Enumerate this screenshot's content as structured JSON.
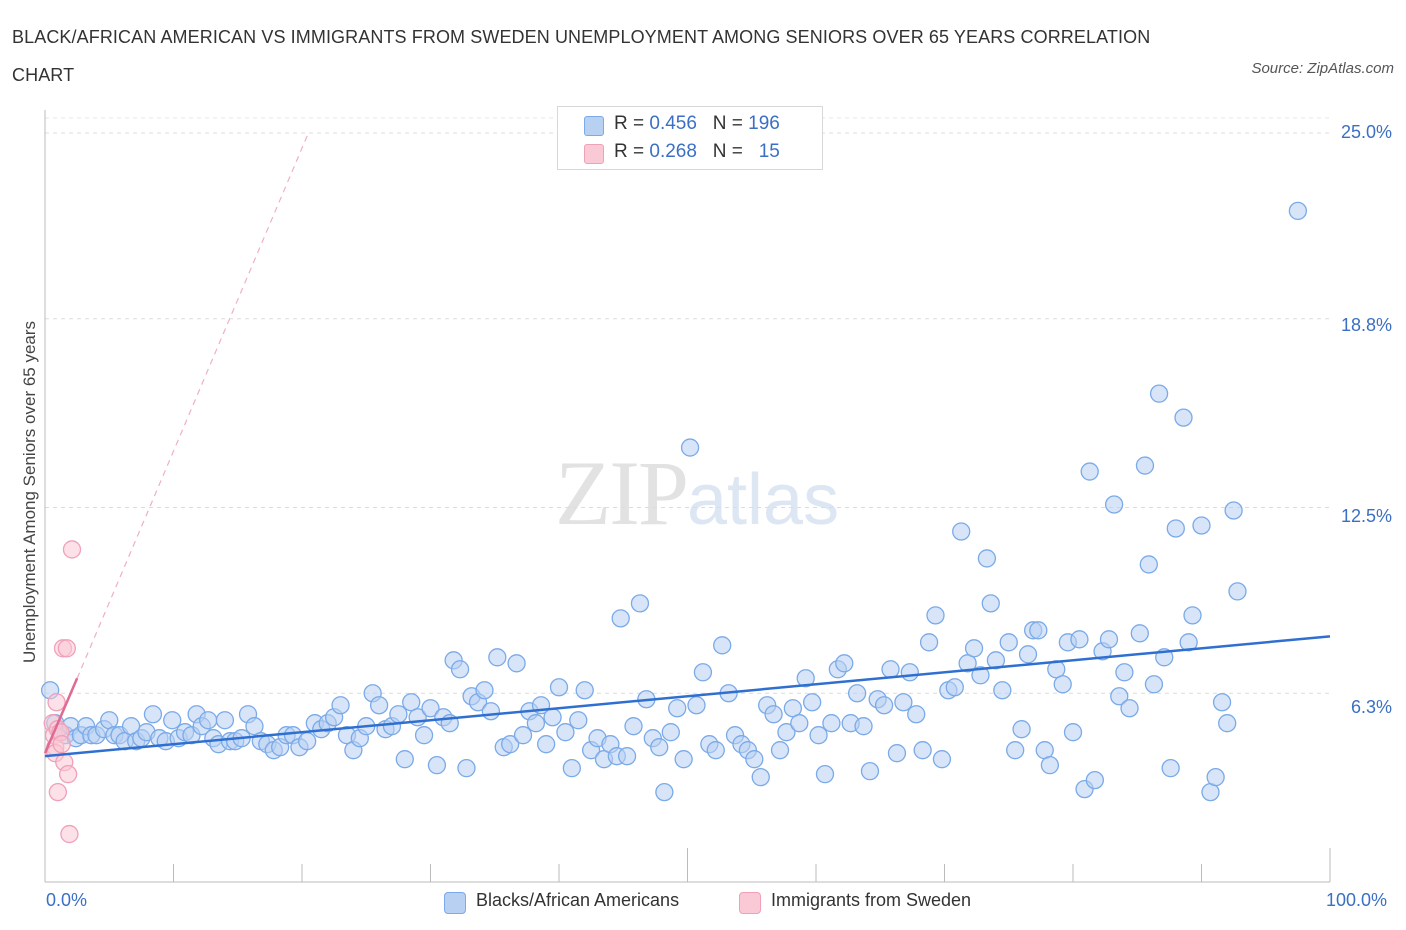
{
  "chart_data": {
    "type": "scatter",
    "title": "BLACK/AFRICAN AMERICAN VS IMMIGRANTS FROM SWEDEN UNEMPLOYMENT AMONG SENIORS OVER 65 YEARS CORRELATION CHART",
    "source": "Source: ZipAtlas.com",
    "xlabel": "",
    "ylabel": "Unemployment Among Seniors over 65 years",
    "xlim": [
      0,
      100
    ],
    "ylim": [
      0,
      25
    ],
    "x_tick_labels": [
      "0.0%",
      "100.0%"
    ],
    "y_ticks": [
      6.3,
      12.5,
      18.8,
      25.0
    ],
    "y_tick_labels": [
      "6.3%",
      "12.5%",
      "18.8%",
      "25.0%"
    ],
    "watermark": "ZIPatlas",
    "legend": [
      {
        "r_label": "R =",
        "r": "0.456",
        "n_label": "N =",
        "n": "196"
      },
      {
        "r_label": "R =",
        "r": "0.268",
        "n_label": "N =",
        "n": "15"
      }
    ],
    "series": [
      {
        "name": "Blacks/African Americans",
        "color": "#7aaae8",
        "fill": "#b8d0f2",
        "trend": {
          "x0": 0,
          "y0": 4.2,
          "x1": 100,
          "y1": 8.2
        },
        "points": [
          [
            0.4,
            6.4
          ],
          [
            0.8,
            5.3
          ],
          [
            1.2,
            5.0
          ],
          [
            1.6,
            4.9
          ],
          [
            2.0,
            5.2
          ],
          [
            2.4,
            4.8
          ],
          [
            2.8,
            4.9
          ],
          [
            3.2,
            5.2
          ],
          [
            3.6,
            4.9
          ],
          [
            4.0,
            4.9
          ],
          [
            4.6,
            5.1
          ],
          [
            5.0,
            5.4
          ],
          [
            5.4,
            4.9
          ],
          [
            5.8,
            4.9
          ],
          [
            6.2,
            4.7
          ],
          [
            6.7,
            5.2
          ],
          [
            7.1,
            4.7
          ],
          [
            7.5,
            4.8
          ],
          [
            7.9,
            5.0
          ],
          [
            8.4,
            5.6
          ],
          [
            8.9,
            4.8
          ],
          [
            9.4,
            4.7
          ],
          [
            9.9,
            5.4
          ],
          [
            10.4,
            4.8
          ],
          [
            10.9,
            5.0
          ],
          [
            11.4,
            4.9
          ],
          [
            11.8,
            5.6
          ],
          [
            12.2,
            5.2
          ],
          [
            12.7,
            5.4
          ],
          [
            13.1,
            4.8
          ],
          [
            13.5,
            4.6
          ],
          [
            14.0,
            5.4
          ],
          [
            14.4,
            4.7
          ],
          [
            14.8,
            4.7
          ],
          [
            15.3,
            4.8
          ],
          [
            15.8,
            5.6
          ],
          [
            16.3,
            5.2
          ],
          [
            16.8,
            4.7
          ],
          [
            17.3,
            4.6
          ],
          [
            17.8,
            4.4
          ],
          [
            18.3,
            4.5
          ],
          [
            18.8,
            4.9
          ],
          [
            19.3,
            4.9
          ],
          [
            19.8,
            4.5
          ],
          [
            20.4,
            4.7
          ],
          [
            21.0,
            5.3
          ],
          [
            21.5,
            5.1
          ],
          [
            22.0,
            5.3
          ],
          [
            22.5,
            5.5
          ],
          [
            23.0,
            5.9
          ],
          [
            23.5,
            4.9
          ],
          [
            24.0,
            4.4
          ],
          [
            24.5,
            4.8
          ],
          [
            25.0,
            5.2
          ],
          [
            25.5,
            6.3
          ],
          [
            26.0,
            5.9
          ],
          [
            26.5,
            5.1
          ],
          [
            27.0,
            5.2
          ],
          [
            27.5,
            5.6
          ],
          [
            28.0,
            4.1
          ],
          [
            28.5,
            6.0
          ],
          [
            29.0,
            5.5
          ],
          [
            29.5,
            4.9
          ],
          [
            30.0,
            5.8
          ],
          [
            30.5,
            3.9
          ],
          [
            31.0,
            5.5
          ],
          [
            31.5,
            5.3
          ],
          [
            31.8,
            7.4
          ],
          [
            32.3,
            7.1
          ],
          [
            32.8,
            3.8
          ],
          [
            33.2,
            6.2
          ],
          [
            33.7,
            6.0
          ],
          [
            34.2,
            6.4
          ],
          [
            34.7,
            5.7
          ],
          [
            35.2,
            7.5
          ],
          [
            35.7,
            4.5
          ],
          [
            36.2,
            4.6
          ],
          [
            36.7,
            7.3
          ],
          [
            37.2,
            4.9
          ],
          [
            37.7,
            5.7
          ],
          [
            38.2,
            5.3
          ],
          [
            38.6,
            5.9
          ],
          [
            39.0,
            4.6
          ],
          [
            39.5,
            5.5
          ],
          [
            40.0,
            6.5
          ],
          [
            40.5,
            5.0
          ],
          [
            41.0,
            3.8
          ],
          [
            41.5,
            5.4
          ],
          [
            42.0,
            6.4
          ],
          [
            42.5,
            4.4
          ],
          [
            43.0,
            4.8
          ],
          [
            43.5,
            4.1
          ],
          [
            44.0,
            4.6
          ],
          [
            44.5,
            4.2
          ],
          [
            44.8,
            8.8
          ],
          [
            45.3,
            4.2
          ],
          [
            45.8,
            5.2
          ],
          [
            46.3,
            9.3
          ],
          [
            46.8,
            6.1
          ],
          [
            47.3,
            4.8
          ],
          [
            47.8,
            4.5
          ],
          [
            48.2,
            3.0
          ],
          [
            48.7,
            5.0
          ],
          [
            49.2,
            5.8
          ],
          [
            49.7,
            4.1
          ],
          [
            50.2,
            14.5
          ],
          [
            50.7,
            5.9
          ],
          [
            51.2,
            7.0
          ],
          [
            51.7,
            4.6
          ],
          [
            52.2,
            4.4
          ],
          [
            52.7,
            7.9
          ],
          [
            53.2,
            6.3
          ],
          [
            53.7,
            4.9
          ],
          [
            54.2,
            4.6
          ],
          [
            54.7,
            4.4
          ],
          [
            55.2,
            4.1
          ],
          [
            55.7,
            3.5
          ],
          [
            56.2,
            5.9
          ],
          [
            56.7,
            5.6
          ],
          [
            57.2,
            4.4
          ],
          [
            57.7,
            5.0
          ],
          [
            58.2,
            5.8
          ],
          [
            58.7,
            5.3
          ],
          [
            59.2,
            6.8
          ],
          [
            59.7,
            6.0
          ],
          [
            60.2,
            4.9
          ],
          [
            60.7,
            3.6
          ],
          [
            61.2,
            5.3
          ],
          [
            61.7,
            7.1
          ],
          [
            62.2,
            7.3
          ],
          [
            62.7,
            5.3
          ],
          [
            63.2,
            6.3
          ],
          [
            63.7,
            5.2
          ],
          [
            64.2,
            3.7
          ],
          [
            64.8,
            6.1
          ],
          [
            65.3,
            5.9
          ],
          [
            65.8,
            7.1
          ],
          [
            66.3,
            4.3
          ],
          [
            66.8,
            6.0
          ],
          [
            67.3,
            7.0
          ],
          [
            67.8,
            5.6
          ],
          [
            68.3,
            4.4
          ],
          [
            68.8,
            8.0
          ],
          [
            69.3,
            8.9
          ],
          [
            69.8,
            4.1
          ],
          [
            70.3,
            6.4
          ],
          [
            70.8,
            6.5
          ],
          [
            71.3,
            11.7
          ],
          [
            71.8,
            7.3
          ],
          [
            72.3,
            7.8
          ],
          [
            72.8,
            6.9
          ],
          [
            73.3,
            10.8
          ],
          [
            73.6,
            9.3
          ],
          [
            74.0,
            7.4
          ],
          [
            74.5,
            6.4
          ],
          [
            75.0,
            8.0
          ],
          [
            75.5,
            4.4
          ],
          [
            76.0,
            5.1
          ],
          [
            76.5,
            7.6
          ],
          [
            76.9,
            8.4
          ],
          [
            77.3,
            8.4
          ],
          [
            77.8,
            4.4
          ],
          [
            78.2,
            3.9
          ],
          [
            78.7,
            7.1
          ],
          [
            79.2,
            6.6
          ],
          [
            79.6,
            8.0
          ],
          [
            80.0,
            5.0
          ],
          [
            80.5,
            8.1
          ],
          [
            80.9,
            3.1
          ],
          [
            81.3,
            13.7
          ],
          [
            81.7,
            3.4
          ],
          [
            82.3,
            7.7
          ],
          [
            82.8,
            8.1
          ],
          [
            83.2,
            12.6
          ],
          [
            83.6,
            6.2
          ],
          [
            84.0,
            7.0
          ],
          [
            84.4,
            5.8
          ],
          [
            85.2,
            8.3
          ],
          [
            85.6,
            13.9
          ],
          [
            85.9,
            10.6
          ],
          [
            86.3,
            6.6
          ],
          [
            86.7,
            16.3
          ],
          [
            87.1,
            7.5
          ],
          [
            87.6,
            3.8
          ],
          [
            88.0,
            11.8
          ],
          [
            88.6,
            15.5
          ],
          [
            89.0,
            8.0
          ],
          [
            89.3,
            8.9
          ],
          [
            90.0,
            11.9
          ],
          [
            90.7,
            3.0
          ],
          [
            91.1,
            3.5
          ],
          [
            91.6,
            6.0
          ],
          [
            92.0,
            5.3
          ],
          [
            92.5,
            12.4
          ],
          [
            92.8,
            9.7
          ],
          [
            97.5,
            22.4
          ]
        ]
      },
      {
        "name": "Immigrants from Sweden",
        "color": "#f0a0b8",
        "fill": "#f9c9d6",
        "trend": {
          "x0": 0,
          "y0": 4.3,
          "x1": 2.5,
          "y1": 6.8
        },
        "trend_ext": {
          "x0": 2.5,
          "y0": 6.8,
          "x1": 20.5,
          "y1": 25.0
        },
        "points": [
          [
            0.6,
            5.3
          ],
          [
            0.7,
            4.9
          ],
          [
            0.8,
            4.5
          ],
          [
            0.8,
            4.3
          ],
          [
            0.9,
            6.0
          ],
          [
            1.0,
            5.1
          ],
          [
            1.0,
            3.0
          ],
          [
            1.2,
            5.0
          ],
          [
            1.3,
            4.6
          ],
          [
            1.4,
            7.8
          ],
          [
            1.5,
            4.0
          ],
          [
            1.7,
            7.8
          ],
          [
            1.8,
            3.6
          ],
          [
            1.9,
            1.6
          ],
          [
            2.1,
            11.1
          ]
        ]
      }
    ]
  }
}
